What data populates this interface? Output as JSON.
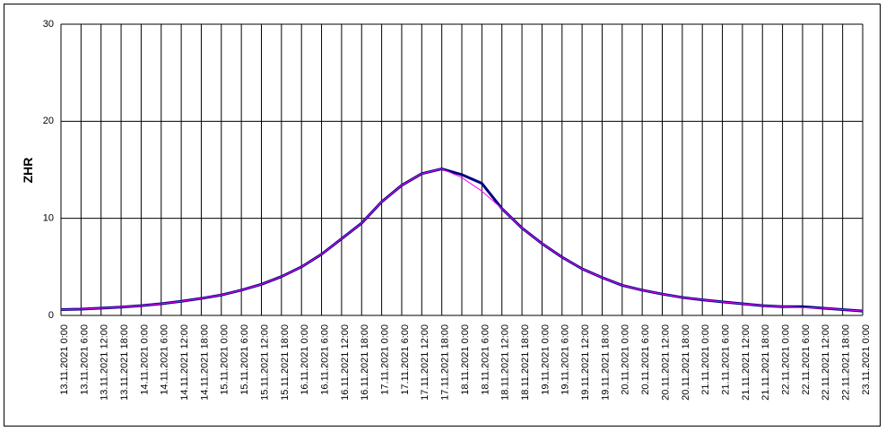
{
  "chart_data": {
    "type": "line",
    "y_label": "ZHR",
    "categories": [
      "13.11.2021 0:00",
      "13.11.2021 6:00",
      "13.11.2021 12:00",
      "13.11.2021 18:00",
      "14.11.2021 0:00",
      "14.11.2021 6:00",
      "14.11.2021 12:00",
      "14.11.2021 18:00",
      "15.11.2021 0:00",
      "15.11.2021 6:00",
      "15.11.2021 12:00",
      "15.11.2021 18:00",
      "16.11.2021 0:00",
      "16.11.2021 6:00",
      "16.11.2021 12:00",
      "16.11.2021 18:00",
      "17.11.2021 0:00",
      "17.11.2021 6:00",
      "17.11.2021 12:00",
      "17.11.2021 18:00",
      "18.11.2021 0:00",
      "18.11.2021 6:00",
      "18.11.2021 12:00",
      "18.11.2021 18:00",
      "19.11.2021 0:00",
      "19.11.2021 6:00",
      "19.11.2021 12:00",
      "19.11.2021 18:00",
      "20.11.2021 0:00",
      "20.11.2021 6:00",
      "20.11.2021 12:00",
      "20.11.2021 18:00",
      "21.11.2021 0:00",
      "21.11.2021 6:00",
      "21.11.2021 12:00",
      "21.11.2021 18:00",
      "22.11.2021 0:00",
      "22.11.2021 6:00",
      "22.11.2021 12:00",
      "22.11.2021 18:00",
      "23.11.2021 0:00"
    ],
    "series": [
      {
        "color": "#000080",
        "values": [
          0.6,
          0.65,
          0.75,
          0.85,
          1.0,
          1.2,
          1.45,
          1.75,
          2.1,
          2.6,
          3.2,
          4.0,
          5.0,
          6.3,
          7.9,
          9.5,
          11.7,
          13.4,
          14.6,
          15.1,
          14.5,
          13.6,
          11.0,
          9.0,
          7.4,
          6.0,
          4.8,
          3.9,
          3.1,
          2.6,
          2.2,
          1.85,
          1.6,
          1.4,
          1.2,
          1.0,
          0.9,
          0.9,
          0.75,
          0.6,
          0.45
        ]
      },
      {
        "color": "#ff00ff",
        "values": [
          0.6,
          0.65,
          0.75,
          0.85,
          1.0,
          1.2,
          1.45,
          1.75,
          2.1,
          2.6,
          3.2,
          4.0,
          5.0,
          6.3,
          7.9,
          9.5,
          11.7,
          13.4,
          14.6,
          15.1,
          14.2,
          12.8,
          11.0,
          9.0,
          7.4,
          6.0,
          4.8,
          3.9,
          3.1,
          2.6,
          2.2,
          1.85,
          1.6,
          1.4,
          1.2,
          1.0,
          0.9,
          0.8,
          0.75,
          0.6,
          0.45
        ]
      }
    ],
    "ylim": [
      0,
      30
    ],
    "yticks": [
      0,
      10,
      20,
      30
    ],
    "grid": true
  }
}
